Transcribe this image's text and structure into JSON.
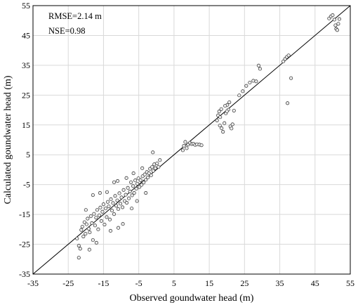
{
  "chart_data": {
    "type": "scatter",
    "title": "",
    "xlabel": "Observed goundwater head (m)",
    "ylabel": "Calculated goundwater head (m)",
    "xlim": [
      -35,
      55
    ],
    "ylim": [
      -35,
      55
    ],
    "xticks": [
      -35,
      -25,
      -15,
      -5,
      5,
      15,
      25,
      35,
      45,
      55
    ],
    "yticks": [
      -35,
      -25,
      -15,
      -5,
      5,
      15,
      25,
      35,
      45,
      55
    ],
    "grid": true,
    "legend": "none",
    "reference_line": {
      "from": [
        -35,
        -35
      ],
      "to": [
        55,
        55
      ]
    },
    "annotations": [
      "RMSE=2.14 m",
      "NSE=0.98"
    ],
    "marker": {
      "fill": "#ececec",
      "edge": "#2b2b2b"
    },
    "series": [
      {
        "points": [
          [
            -22.5,
            -23.1
          ],
          [
            -22.0,
            -25.5
          ],
          [
            -21.6,
            -26.5
          ],
          [
            -21.3,
            -20.2
          ],
          [
            -21.0,
            -19.1
          ],
          [
            -20.7,
            -22.4
          ],
          [
            -20.4,
            -17.6
          ],
          [
            -20.1,
            -21.5
          ],
          [
            -19.8,
            -18.3
          ],
          [
            -19.5,
            -16.4
          ],
          [
            -19.2,
            -19.8
          ],
          [
            -18.9,
            -21.0
          ],
          [
            -18.6,
            -15.6
          ],
          [
            -18.3,
            -17.9
          ],
          [
            -18.0,
            -23.6
          ],
          [
            -17.7,
            -14.8
          ],
          [
            -17.4,
            -18.7
          ],
          [
            -17.1,
            -16.1
          ],
          [
            -16.8,
            -13.5
          ],
          [
            -16.5,
            -20.0
          ],
          [
            -16.2,
            -15.3
          ],
          [
            -15.9,
            -12.7
          ],
          [
            -15.6,
            -17.2
          ],
          [
            -15.3,
            -14.1
          ],
          [
            -15.0,
            -11.6
          ],
          [
            -14.7,
            -18.4
          ],
          [
            -14.4,
            -13.0
          ],
          [
            -14.1,
            -15.9
          ],
          [
            -13.8,
            -10.8
          ],
          [
            -13.5,
            -12.3
          ],
          [
            -13.2,
            -16.7
          ],
          [
            -12.9,
            -9.9
          ],
          [
            -12.6,
            -13.7
          ],
          [
            -12.3,
            -11.2
          ],
          [
            -12.0,
            -14.9
          ],
          [
            -11.7,
            -8.8
          ],
          [
            -11.4,
            -12.1
          ],
          [
            -11.1,
            -10.3
          ],
          [
            -10.8,
            -13.2
          ],
          [
            -10.5,
            -7.9
          ],
          [
            -10.2,
            -11.4
          ],
          [
            -9.9,
            -9.3
          ],
          [
            -9.6,
            -12.6
          ],
          [
            -9.3,
            -6.8
          ],
          [
            -9.0,
            -10.5
          ],
          [
            -8.7,
            -8.4
          ],
          [
            -8.4,
            -11.1
          ],
          [
            -8.1,
            -6.1
          ],
          [
            -7.8,
            -9.6
          ],
          [
            -7.5,
            -7.3
          ],
          [
            -7.2,
            -4.2
          ],
          [
            -6.9,
            -8.6
          ],
          [
            -6.6,
            -5.5
          ],
          [
            -6.3,
            -7.8
          ],
          [
            -6.0,
            -3.6
          ],
          [
            -5.7,
            -6.4
          ],
          [
            -5.4,
            -4.7
          ],
          [
            -5.1,
            -2.9
          ],
          [
            -4.8,
            -5.8
          ],
          [
            -4.5,
            -3.5
          ],
          [
            -4.2,
            -5.1
          ],
          [
            -3.9,
            -2.2
          ],
          [
            -3.6,
            -4.3
          ],
          [
            -3.3,
            -1.6
          ],
          [
            -3.0,
            -3.4
          ],
          [
            -2.7,
            -0.8
          ],
          [
            -2.4,
            -2.6
          ],
          [
            -2.1,
            -1.2
          ],
          [
            -1.8,
            0.3
          ],
          [
            -1.5,
            -1.9
          ],
          [
            -1.2,
            0.9
          ],
          [
            -0.9,
            -0.4
          ],
          [
            -0.6,
            1.8
          ],
          [
            -0.3,
            0.5
          ],
          [
            0.2,
            2.1
          ],
          [
            0.6,
            0.9
          ],
          [
            1.0,
            3.2
          ],
          [
            -1.0,
            5.8
          ],
          [
            -10.8,
            -19.5
          ],
          [
            -9.5,
            -18.2
          ],
          [
            -12.0,
            -4.2
          ],
          [
            -14.0,
            -7.5
          ],
          [
            -22.0,
            -29.5
          ],
          [
            -8.5,
            -2.8
          ],
          [
            -4.0,
            0.5
          ],
          [
            -6.5,
            -1.2
          ],
          [
            -18.0,
            -8.5
          ],
          [
            -20.0,
            -13.5
          ],
          [
            -16.0,
            -7.8
          ],
          [
            -11.0,
            -3.8
          ],
          [
            -13.0,
            -20.5
          ],
          [
            -17.0,
            -24.5
          ],
          [
            -19.0,
            -26.8
          ],
          [
            -7.0,
            -13.0
          ],
          [
            -5.5,
            -10.5
          ],
          [
            -3.0,
            -7.8
          ],
          [
            7.5,
            6.5
          ],
          [
            7.8,
            8.0
          ],
          [
            8.2,
            9.3
          ],
          [
            8.6,
            7.2
          ],
          [
            9.0,
            8.4
          ],
          [
            9.5,
            9.0
          ],
          [
            10.0,
            8.6
          ],
          [
            10.5,
            8.7
          ],
          [
            11.0,
            8.3
          ],
          [
            11.5,
            8.5
          ],
          [
            12.2,
            8.4
          ],
          [
            12.8,
            8.2
          ],
          [
            17.2,
            16.5
          ],
          [
            17.5,
            18.2
          ],
          [
            17.8,
            19.5
          ],
          [
            18.1,
            17.6
          ],
          [
            18.4,
            20.3
          ],
          [
            18.0,
            14.8
          ],
          [
            18.5,
            13.9
          ],
          [
            18.9,
            12.7
          ],
          [
            19.3,
            15.6
          ],
          [
            19.7,
            18.9
          ],
          [
            20.1,
            21.7
          ],
          [
            20.4,
            20.1
          ],
          [
            20.7,
            22.6
          ],
          [
            21.0,
            14.5
          ],
          [
            21.3,
            13.8
          ],
          [
            21.6,
            15.2
          ],
          [
            19.5,
            21.4
          ],
          [
            20.0,
            19.6
          ],
          [
            22.0,
            19.8
          ],
          [
            23.5,
            24.9
          ],
          [
            24.5,
            26.3
          ],
          [
            25.5,
            28.1
          ],
          [
            26.5,
            29.2
          ],
          [
            27.5,
            29.8
          ],
          [
            28.3,
            29.6
          ],
          [
            29.0,
            34.9
          ],
          [
            29.4,
            33.8
          ],
          [
            36.0,
            36.3
          ],
          [
            36.5,
            37.1
          ],
          [
            37.0,
            37.8
          ],
          [
            37.5,
            38.3
          ],
          [
            37.2,
            22.3
          ],
          [
            38.2,
            30.7
          ],
          [
            49.0,
            50.7
          ],
          [
            49.5,
            51.4
          ],
          [
            50.0,
            51.8
          ],
          [
            50.5,
            50.3
          ],
          [
            50.8,
            48.4
          ],
          [
            51.0,
            47.2
          ],
          [
            51.3,
            46.8
          ],
          [
            51.6,
            48.9
          ],
          [
            51.9,
            50.5
          ]
        ]
      }
    ]
  }
}
